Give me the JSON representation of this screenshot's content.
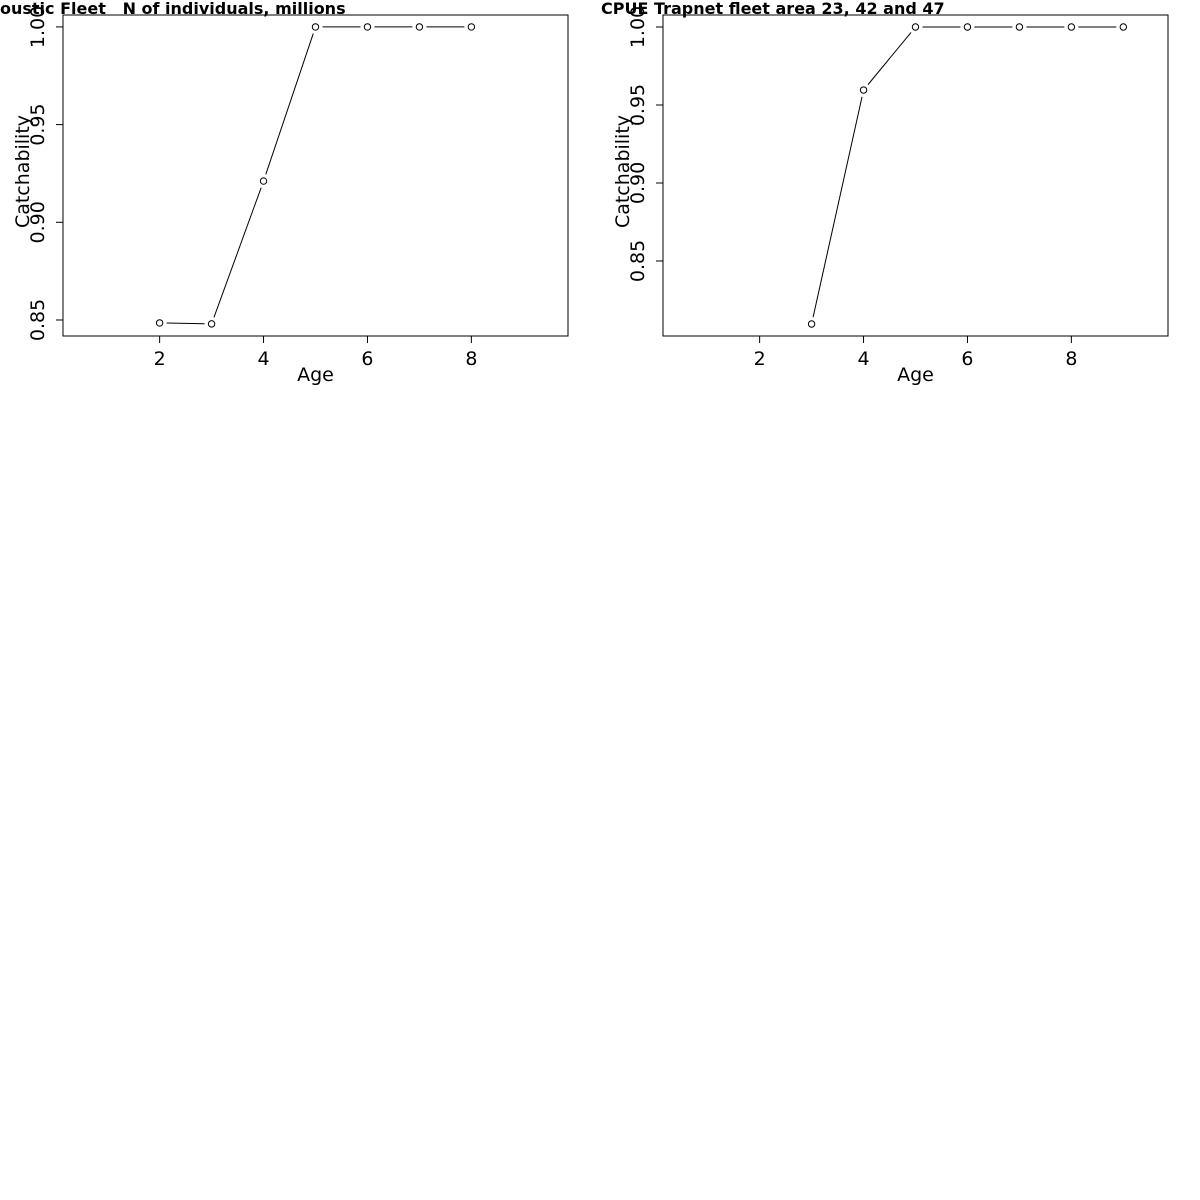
{
  "chart_data": [
    {
      "type": "line",
      "title": "oustic Fleet   N of individuals, millions",
      "x_label": "Age",
      "y_label": "Catchability",
      "x": [
        2,
        3,
        4,
        5,
        6,
        7,
        8
      ],
      "values": [
        0.8485,
        0.848,
        0.9211,
        1.0,
        1.0,
        1.0,
        1.0
      ],
      "color": "#000000",
      "xlim": [
        0.14,
        9.86
      ],
      "xticks": [
        2,
        4,
        6,
        8
      ],
      "ylim": [
        0.8418,
        1.0061
      ],
      "yticks": [
        {
          "value": 0.85,
          "label": "0.85"
        },
        {
          "value": 0.9,
          "label": "0.90"
        },
        {
          "value": 0.95,
          "label": "0.95"
        },
        {
          "value": 1.0,
          "label": "1.00"
        }
      ]
    },
    {
      "type": "line",
      "title": "CPUE Trapnet fleet area 23, 42 and 47",
      "x_label": "Age",
      "y_label": "Catchability",
      "x": [
        3,
        4,
        5,
        6,
        7,
        8,
        9
      ],
      "values": [
        0.8096,
        0.9596,
        1.0,
        1.0,
        1.0,
        1.0,
        1.0
      ],
      "color": "#000000",
      "xlim": [
        0.14,
        9.86
      ],
      "xticks": [
        2,
        4,
        6,
        8
      ],
      "ylim": [
        0.8019,
        1.0077
      ],
      "yticks": [
        {
          "value": 0.85,
          "label": "0.85"
        },
        {
          "value": 0.9,
          "label": "0.90"
        },
        {
          "value": 0.95,
          "label": "0.95"
        },
        {
          "value": 1.0,
          "label": "1.00"
        }
      ]
    }
  ]
}
